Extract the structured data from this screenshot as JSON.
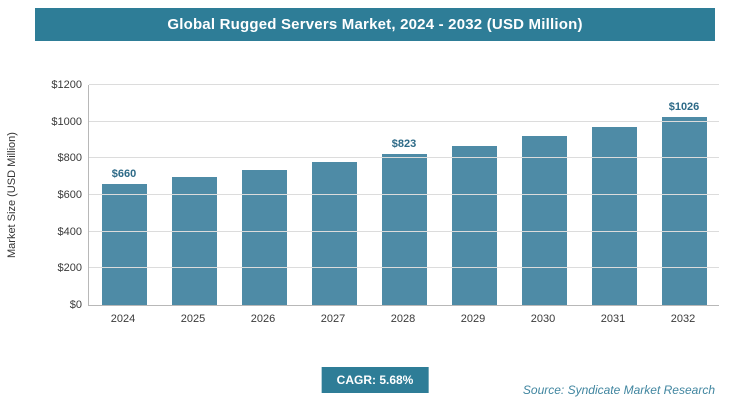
{
  "header": {
    "title": "Global Rugged Servers Market, 2024 - 2032 (USD Million)"
  },
  "chart_data": {
    "type": "bar",
    "title": "Global Rugged Servers Market, 2024 - 2032 (USD Million)",
    "categories": [
      "2024",
      "2025",
      "2026",
      "2027",
      "2028",
      "2029",
      "2030",
      "2031",
      "2032"
    ],
    "values": [
      660,
      697,
      737,
      779,
      823,
      870,
      920,
      971,
      1026
    ],
    "data_labels": [
      "$660",
      "",
      "",
      "",
      "$823",
      "",
      "",
      "",
      "$1026"
    ],
    "ylabel": "Market Size (USD Million)",
    "xlabel": "",
    "ylim": [
      0,
      1200
    ],
    "ytick_values": [
      0,
      200,
      400,
      600,
      800,
      1000,
      1200
    ],
    "ytick_labels": [
      "$0",
      "$200",
      "$400",
      "$600",
      "$800",
      "$1000",
      "$1200"
    ],
    "grid": "horizontal",
    "legend": "none",
    "bar_color": "#4e8ba6",
    "label_color": "#2d6a87",
    "accent_color": "#2e7d97"
  },
  "footer": {
    "cagr_label": "CAGR: 5.68%",
    "source": "Source: Syndicate Market Research"
  }
}
